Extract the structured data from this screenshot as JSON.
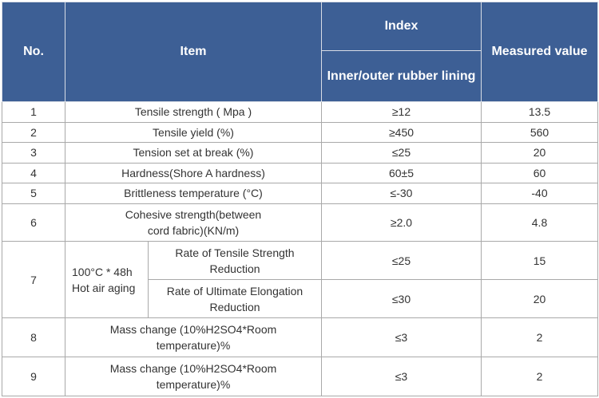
{
  "header": {
    "no": "No.",
    "item": "Item",
    "index": "Index",
    "index_sub": "Inner/outer rubber lining",
    "measured": "Measured value"
  },
  "rows": [
    {
      "no": "1",
      "item": "Tensile strength ( Mpa )",
      "index": "≥12",
      "value": "13.5"
    },
    {
      "no": "2",
      "item": "Tensile yield (%)",
      "index": "≥450",
      "value": "560"
    },
    {
      "no": "3",
      "item": "Tension set at break (%)",
      "index": "≤25",
      "value": "20"
    },
    {
      "no": "4",
      "item": "Hardness(Shore A hardness)",
      "index": "60±5",
      "value": "60"
    },
    {
      "no": "5",
      "item": "Brittleness temperature (°C)",
      "index": "≤-30",
      "value": "-40"
    },
    {
      "no": "6",
      "item": "Cohesive strength(between cord fabric)(KN/m)",
      "index": "≥2.0",
      "value": "4.8"
    },
    {
      "no": "7",
      "group": "100°C * 48h Hot air aging",
      "subrows": [
        {
          "item": "Rate of Tensile Strength Reduction",
          "index": "≤25",
          "value": "15"
        },
        {
          "item": "Rate of Ultimate Elongation Reduction",
          "index": "≤30",
          "value": "20"
        }
      ]
    },
    {
      "no": "8",
      "item": "Mass change (10%H2SO4*Room temperature)%",
      "index": "≤3",
      "value": "2"
    },
    {
      "no": "9",
      "item": "Mass change (10%H2SO4*Room temperature)%",
      "index": "≤3",
      "value": "2"
    }
  ]
}
